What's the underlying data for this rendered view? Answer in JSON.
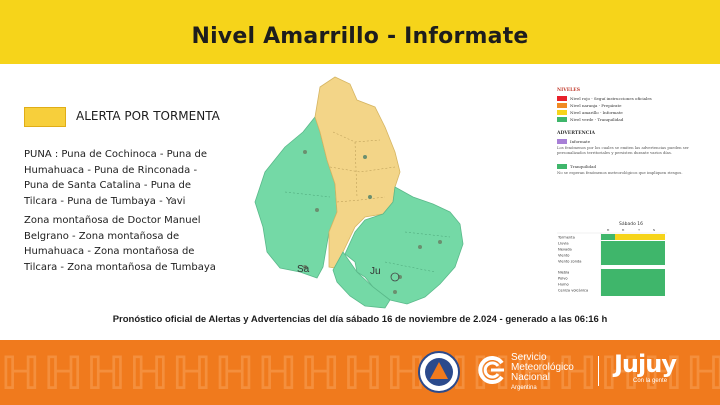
{
  "header": {
    "title": "Nivel Amarrillo - Informate"
  },
  "alert": {
    "label": "ALERTA POR TORMENTA",
    "color": "#f7cf3b"
  },
  "zones": {
    "group1": "PUNA : Puna de Cochinoca - Puna de Humahuaca - Puna de Rinconada - Puna de Santa Catalina - Puna de Tilcara - Puna de Tumbaya - Yavi",
    "group2": "Zona montañosa de Doctor Manuel Belgrano - Zona montañosa de Humahuaca - Zona montañosa de Tilcara - Zona montañosa de Tumbaya"
  },
  "map": {
    "label_sa": "Sa",
    "label_ju": "Ju",
    "yellow_color": "#f3d588",
    "green_color": "#74d9a6"
  },
  "legend": {
    "niveles_title": "NIVELES",
    "niveles": [
      {
        "label": "Nivel rojo - Seguí instrucciones oficiales",
        "color": "#e8202a"
      },
      {
        "label": "Nivel naranja - Prepárate",
        "color": "#f08a24"
      },
      {
        "label": "Nivel amarillo - Informate",
        "color": "#f6d41a"
      },
      {
        "label": "Nivel verde - Tranquilidad",
        "color": "#3fb66b"
      }
    ],
    "advertencia_title": "ADVERTENCIA",
    "advertencia_item": {
      "label": "Informate",
      "color": "#a77fd6"
    },
    "advertencia_note": "Los fenómenos por los cuales se emiten las advertencias pueden ser personalizados territoriales y persisten durante varios días.",
    "tranquilidad_item": {
      "label": "Tranquilidad",
      "color": "#3fb66b"
    },
    "tranquilidad_note": "No se esperan fenómenos meteorológicos que impliquen riesgos."
  },
  "mini_table": {
    "header": "Sábado 16",
    "periods": [
      "M",
      "M",
      "T",
      "N"
    ],
    "rows": [
      "Tormenta",
      "Lluvia",
      "Nevada",
      "Viento",
      "Viento zonda",
      "Niebla",
      "Polvo",
      "Humo",
      "Ceniza volcánica"
    ]
  },
  "footer": {
    "note": "Pronóstico oficial de Alertas y Advertencias del día sábado 16 de noviembre de 2.024 - generado a las 06:16 h"
  },
  "logos": {
    "smn_line1": "Servicio",
    "smn_line2": "Meteorológico",
    "smn_line3": "Nacional",
    "smn_line4": "Argentina",
    "jujuy": "Jujuy",
    "jujuy_tag": "Con la gente"
  }
}
